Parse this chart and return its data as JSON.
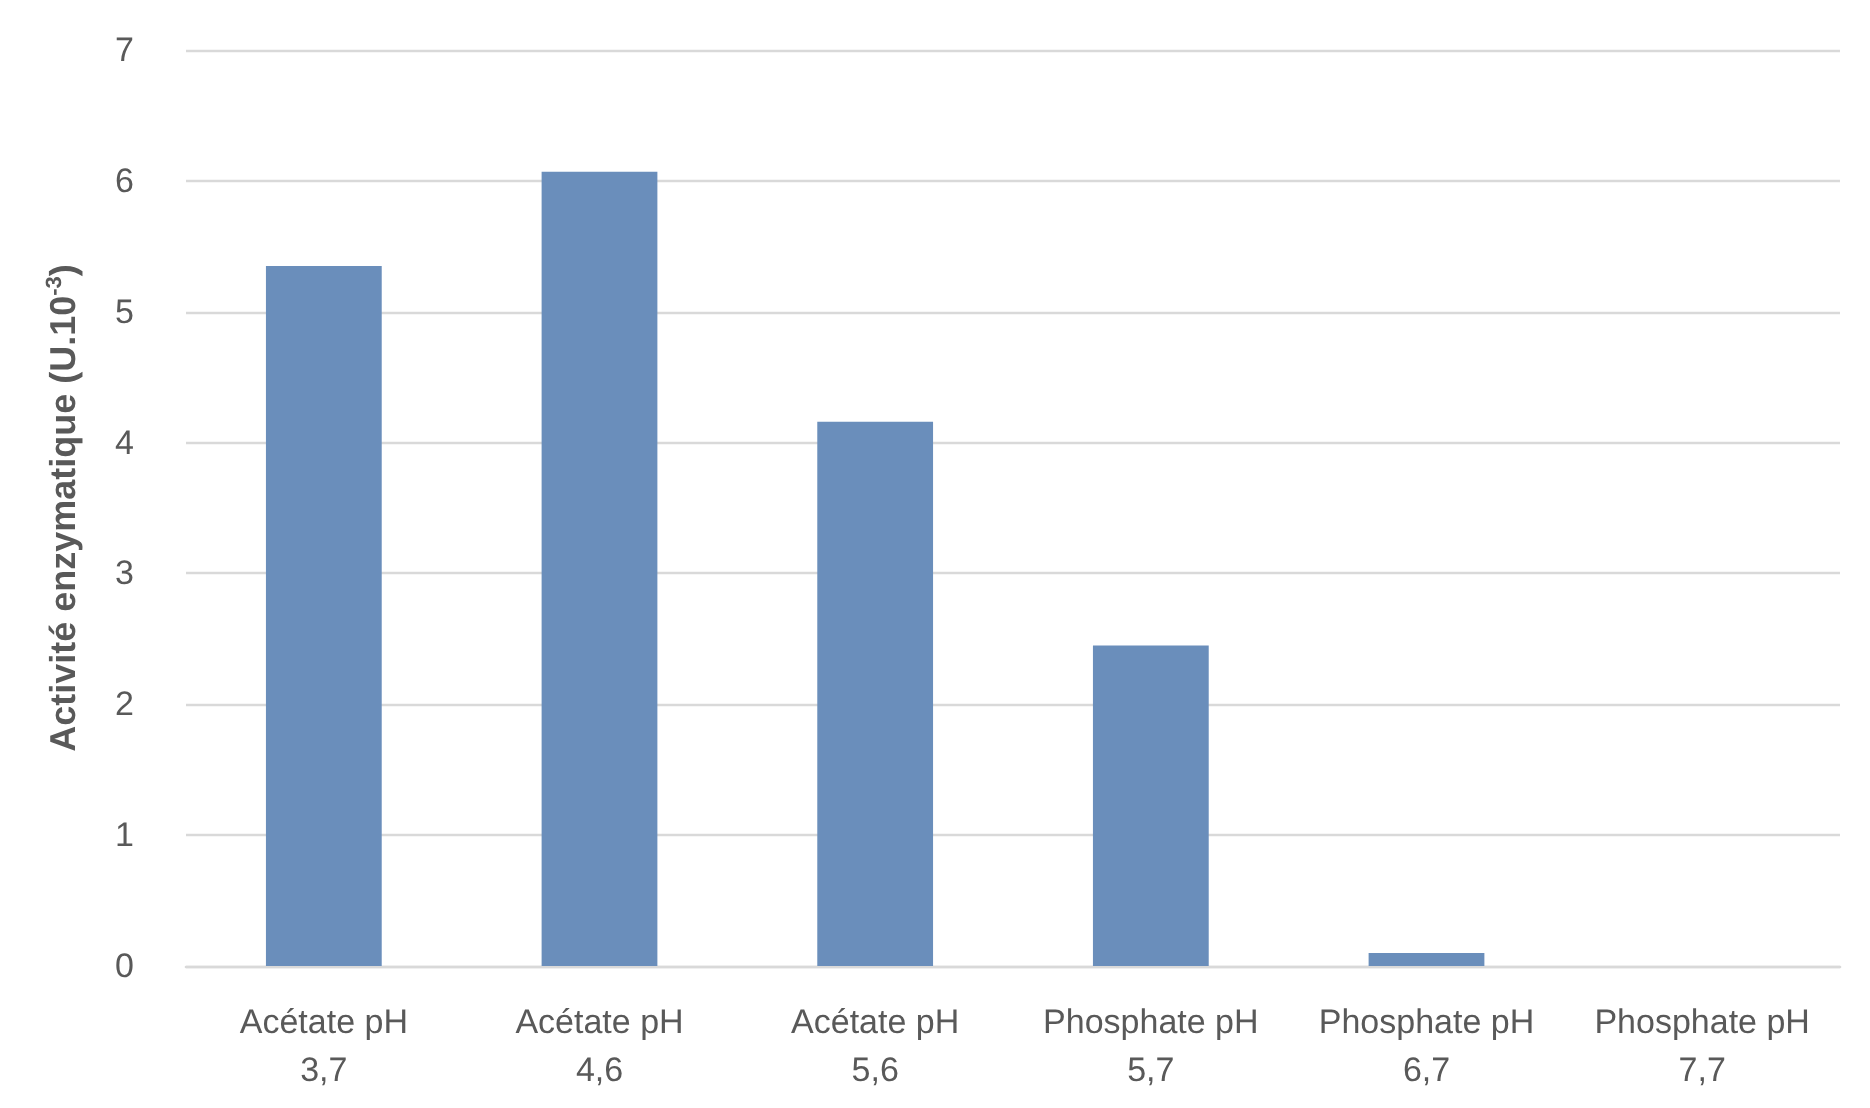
{
  "chart_data": {
    "type": "bar",
    "ylabel": "Activité enzymatique (U.10$^{-3}$)",
    "categories": [
      "Acétate pH 3,7",
      "Acétate pH 4,6",
      "Acétate pH 5,6",
      "Phosphate pH 5,7",
      "Phosphate pH 6,7",
      "Phosphate pH 7,7"
    ],
    "values": [
      5.35,
      6.07,
      4.16,
      2.45,
      0.1,
      0
    ],
    "color": "#6a8ebb",
    "ylim": [
      0,
      7
    ],
    "yticks": [
      0,
      1,
      2,
      3,
      4,
      5,
      6,
      7
    ],
    "grid": "y"
  }
}
